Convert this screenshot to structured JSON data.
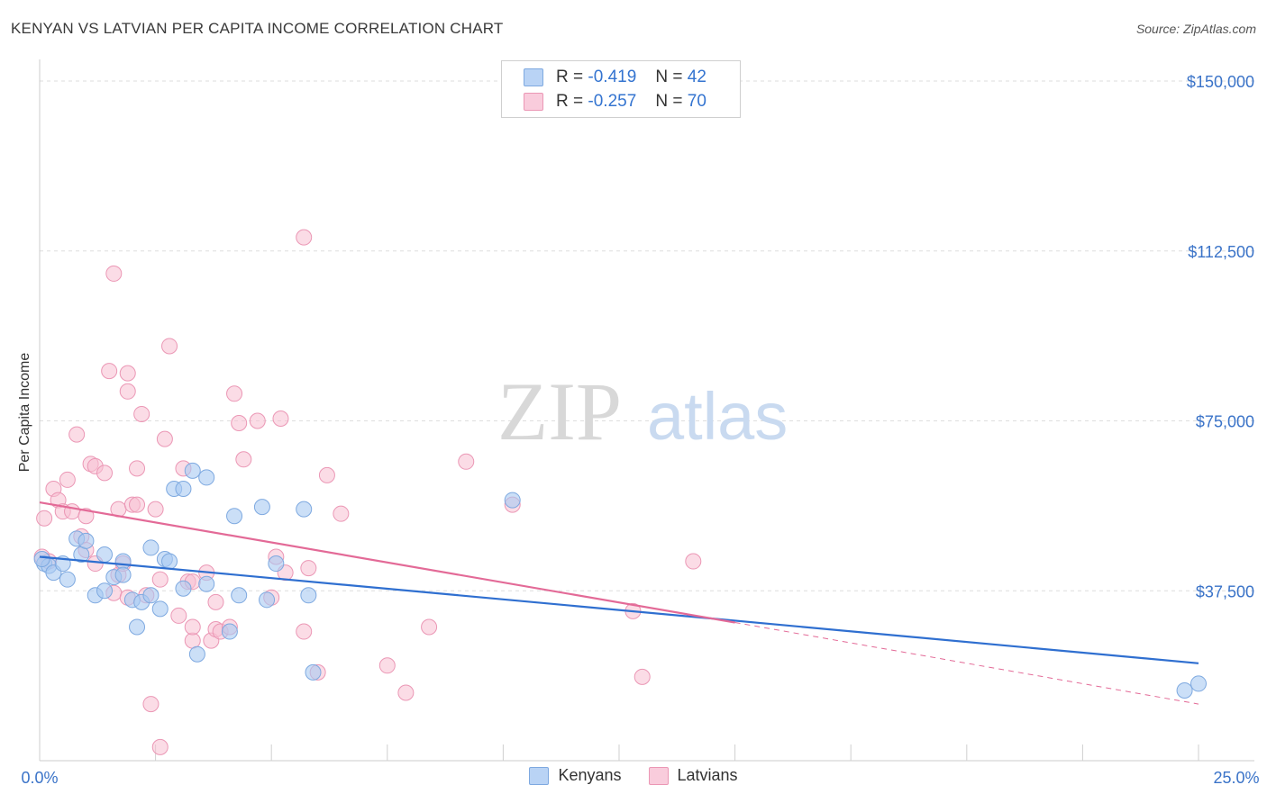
{
  "header": {
    "title": "KENYAN VS LATVIAN PER CAPITA INCOME CORRELATION CHART",
    "source": "Source: ZipAtlas.com"
  },
  "watermark": {
    "zip": "ZIP",
    "atlas": "atlas"
  },
  "legend_top": {
    "kenyans": {
      "r_label": "R =",
      "r_value": "-0.419",
      "n_label": "N =",
      "n_value": "42"
    },
    "latvians": {
      "r_label": "R =",
      "r_value": "-0.257",
      "n_label": "N =",
      "n_value": "70"
    }
  },
  "legend_bottom": {
    "kenyans": "Kenyans",
    "latvians": "Latvians"
  },
  "colors": {
    "kenyans_fill": "#a9c9f2",
    "kenyans_stroke": "#7ea9e0",
    "kenyans_line": "#2f6fd0",
    "latvians_fill": "#f7bfd2",
    "latvians_stroke": "#eb97b5",
    "latvians_line": "#e36a97",
    "tick_text": "#3a73c8",
    "grid": "#dedede"
  },
  "chart_data": {
    "type": "scatter",
    "title": "KENYAN VS LATVIAN PER CAPITA INCOME CORRELATION CHART",
    "xlabel": "",
    "ylabel": "Per Capita Income",
    "xlim": [
      0,
      25
    ],
    "ylim": [
      0,
      150000
    ],
    "x_tick_labels": [
      "0.0%",
      "25.0%"
    ],
    "y_ticks": [
      37500,
      75000,
      112500,
      150000
    ],
    "y_tick_labels": [
      "$37,500",
      "$75,000",
      "$112,500",
      "$150,000"
    ],
    "grid": true,
    "legend_position": "top-center",
    "series": [
      {
        "name": "Kenyans",
        "r": -0.419,
        "n": 42,
        "trend": {
          "x": [
            0,
            25
          ],
          "y": [
            45000,
            21500
          ]
        },
        "points": [
          [
            0.1,
            43500
          ],
          [
            0.2,
            43000
          ],
          [
            0.3,
            41500
          ],
          [
            0.5,
            43500
          ],
          [
            0.6,
            40000
          ],
          [
            0.8,
            49000
          ],
          [
            0.9,
            45500
          ],
          [
            1.0,
            48500
          ],
          [
            1.2,
            36500
          ],
          [
            1.4,
            37500
          ],
          [
            1.4,
            45500
          ],
          [
            1.6,
            40500
          ],
          [
            1.8,
            44000
          ],
          [
            1.8,
            41000
          ],
          [
            2.0,
            35500
          ],
          [
            2.1,
            29500
          ],
          [
            2.2,
            35000
          ],
          [
            2.4,
            36500
          ],
          [
            2.4,
            47000
          ],
          [
            2.6,
            33500
          ],
          [
            2.7,
            44500
          ],
          [
            2.8,
            44000
          ],
          [
            2.9,
            60000
          ],
          [
            3.1,
            60000
          ],
          [
            3.1,
            38000
          ],
          [
            3.3,
            64000
          ],
          [
            3.4,
            23500
          ],
          [
            3.6,
            62500
          ],
          [
            3.6,
            39000
          ],
          [
            4.1,
            28500
          ],
          [
            4.2,
            54000
          ],
          [
            4.3,
            36500
          ],
          [
            4.8,
            56000
          ],
          [
            4.9,
            35500
          ],
          [
            5.1,
            43500
          ],
          [
            5.7,
            55500
          ],
          [
            5.8,
            36500
          ],
          [
            5.9,
            19500
          ],
          [
            10.2,
            57500
          ],
          [
            24.7,
            15500
          ],
          [
            25.0,
            17000
          ],
          [
            0.05,
            44500
          ]
        ]
      },
      {
        "name": "Latvians",
        "r": -0.257,
        "n": 70,
        "trend": {
          "x": [
            0,
            15
          ],
          "y": [
            57000,
            30500
          ]
        },
        "trend_dashed": {
          "x": [
            15,
            25
          ],
          "y": [
            30500,
            12500
          ]
        },
        "points": [
          [
            0.1,
            53500
          ],
          [
            0.2,
            44000
          ],
          [
            0.3,
            60000
          ],
          [
            0.4,
            57500
          ],
          [
            0.5,
            55000
          ],
          [
            0.6,
            62000
          ],
          [
            0.7,
            55000
          ],
          [
            0.8,
            72000
          ],
          [
            0.9,
            49500
          ],
          [
            1.0,
            46500
          ],
          [
            1.0,
            54000
          ],
          [
            1.1,
            65500
          ],
          [
            1.2,
            65000
          ],
          [
            1.2,
            43500
          ],
          [
            1.4,
            63500
          ],
          [
            1.5,
            86000
          ],
          [
            1.6,
            37000
          ],
          [
            1.6,
            107500
          ],
          [
            1.7,
            41000
          ],
          [
            1.7,
            55500
          ],
          [
            1.8,
            43500
          ],
          [
            1.9,
            81500
          ],
          [
            1.9,
            36000
          ],
          [
            1.9,
            85500
          ],
          [
            2.0,
            56500
          ],
          [
            2.1,
            56500
          ],
          [
            2.1,
            64500
          ],
          [
            2.2,
            76500
          ],
          [
            2.3,
            36500
          ],
          [
            2.4,
            12500
          ],
          [
            2.5,
            55500
          ],
          [
            2.6,
            40000
          ],
          [
            2.6,
            3000
          ],
          [
            2.7,
            71000
          ],
          [
            2.8,
            91500
          ],
          [
            3.0,
            32000
          ],
          [
            3.1,
            64500
          ],
          [
            3.2,
            39500
          ],
          [
            3.3,
            39500
          ],
          [
            3.3,
            26500
          ],
          [
            3.3,
            29500
          ],
          [
            3.6,
            41500
          ],
          [
            3.7,
            26500
          ],
          [
            3.8,
            29000
          ],
          [
            3.8,
            35000
          ],
          [
            3.9,
            28500
          ],
          [
            4.1,
            29500
          ],
          [
            4.2,
            81000
          ],
          [
            4.3,
            74500
          ],
          [
            4.4,
            66500
          ],
          [
            4.7,
            75000
          ],
          [
            5.0,
            36000
          ],
          [
            5.1,
            45000
          ],
          [
            5.2,
            75500
          ],
          [
            5.3,
            41500
          ],
          [
            5.7,
            28500
          ],
          [
            5.8,
            42500
          ],
          [
            6.0,
            19500
          ],
          [
            6.2,
            63000
          ],
          [
            6.5,
            54500
          ],
          [
            7.5,
            21000
          ],
          [
            7.9,
            15000
          ],
          [
            8.4,
            29500
          ],
          [
            9.2,
            66000
          ],
          [
            10.2,
            56500
          ],
          [
            12.8,
            33000
          ],
          [
            13.0,
            18500
          ],
          [
            14.1,
            44000
          ],
          [
            0.05,
            45000
          ],
          [
            5.7,
            115500
          ]
        ]
      }
    ]
  }
}
